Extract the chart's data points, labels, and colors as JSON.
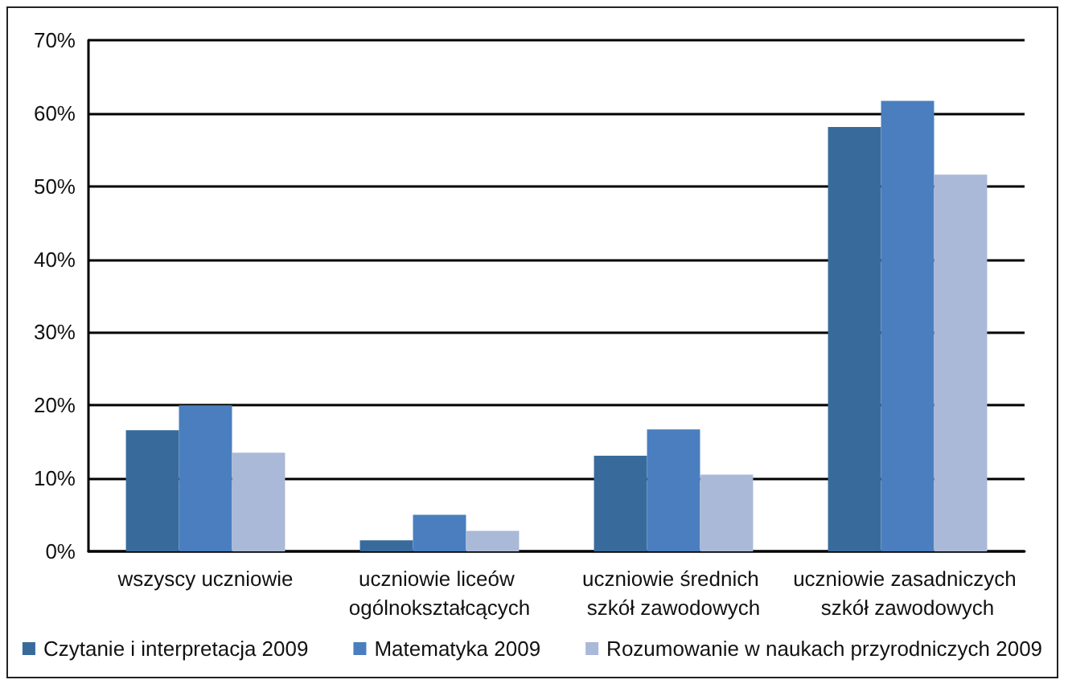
{
  "chart_data": {
    "type": "bar",
    "categories": [
      "wszyscy uczniowie",
      "uczniowie liceów ogólnokształcących",
      "uczniowie średnich szkół zawodowych",
      "uczniowie zasadniczych szkół zawodowych"
    ],
    "series": [
      {
        "name": "Czytanie i interpretacja 2009",
        "color": "#386b9c",
        "values": [
          16.6,
          1.5,
          13.1,
          58.1
        ]
      },
      {
        "name": "Matematyka 2009",
        "color": "#4a7ebf",
        "values": [
          20.0,
          5.0,
          16.7,
          61.7
        ]
      },
      {
        "name": "Rozumowanie w naukach przyrodniczych 2009",
        "color": "#aab9d8",
        "values": [
          13.5,
          2.8,
          10.5,
          51.6
        ]
      }
    ],
    "ylim": [
      0,
      70
    ],
    "yticks": [
      {
        "value": 0,
        "label": "0%"
      },
      {
        "value": 10,
        "label": "10%"
      },
      {
        "value": 20,
        "label": "20%"
      },
      {
        "value": 30,
        "label": "30%"
      },
      {
        "value": 40,
        "label": "40%"
      },
      {
        "value": 50,
        "label": "50%"
      },
      {
        "value": 60,
        "label": "60%"
      },
      {
        "value": 70,
        "label": "70%"
      }
    ],
    "grid": "y",
    "legend": "bottom"
  }
}
